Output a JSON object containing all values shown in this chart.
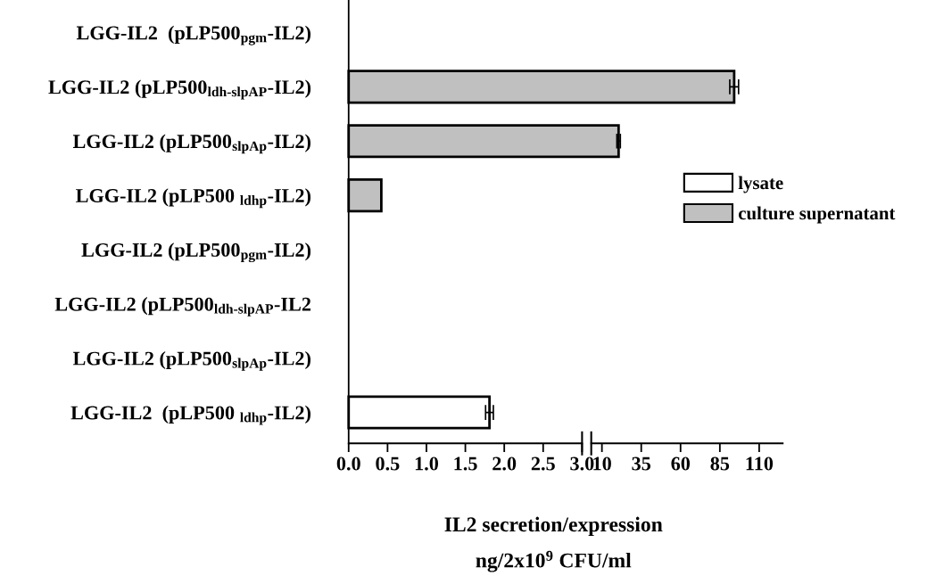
{
  "chart_data": [
    {
      "type": "bar",
      "orientation": "horizontal",
      "categories": [
        "LGG-IL2  (pLP500$_{pgm}$-IL2)",
        "LGG-IL2 (pLP500$_{ldh-slpAP}$-IL2)",
        "LGG-IL2 (pLP500$_{slpAp}$-IL2)",
        "LGG-IL2 (pLP500 $_{ldhp}$-IL2)",
        "LGG-IL2 (pLP500$_{pgm}$-IL2)",
        "LGG-IL2 (pLP500$_{ldh-slpAP}$-IL2",
        "LGG-IL2 (pLP500$_{slpAp}$-IL2)",
        "LGG-IL2  (pLP500 $_{ldhp}$-IL2)"
      ],
      "series": [
        {
          "name": "lysate",
          "color": "#ffffff",
          "values": [
            null,
            null,
            null,
            null,
            0,
            0,
            0,
            1.81
          ],
          "errors": [
            null,
            null,
            null,
            null,
            null,
            null,
            null,
            0.05
          ]
        },
        {
          "name": "culture supernatant",
          "color": "#c0c0c0",
          "values": [
            0,
            null,
            null,
            0.42,
            null,
            null,
            null,
            null
          ]
        }
      ],
      "xlim": [
        0,
        3.0
      ],
      "xticks": [
        {
          "value": 0,
          "label": "0.0"
        },
        0.5,
        {
          "value": 1,
          "label": "1.0"
        },
        1.5,
        {
          "value": 2,
          "label": "2.0"
        },
        2.5,
        {
          "value": 3,
          "label": "3.0"
        }
      ],
      "xlabel": "IL2 secretion/expression\nng/2x10$^{9}$ CFU/ml",
      "legend": "right",
      "grid": false
    },
    {
      "type": "bar",
      "orientation": "horizontal",
      "categories": [
        null,
        null,
        null,
        null,
        null,
        null,
        null,
        null
      ],
      "series": [
        {
          "color": "#c0c0c0",
          "values": [
            null,
            94.1,
            20.6,
            null,
            null,
            null,
            null,
            null
          ],
          "errors": [
            null,
            2.8,
            1.1,
            null,
            null,
            null,
            null,
            null
          ]
        }
      ],
      "xlim": [
        3.2,
        125
      ],
      "xticks": [
        10,
        35,
        60,
        85,
        110
      ],
      "tick_labels": "x",
      "grid": false
    }
  ]
}
